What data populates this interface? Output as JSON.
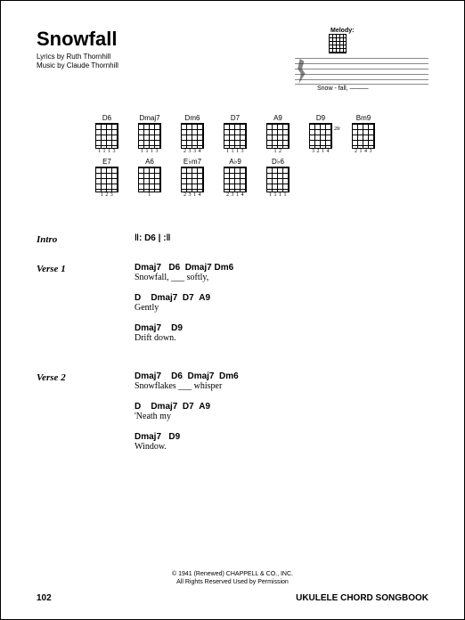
{
  "title": "Snowfall",
  "credits": {
    "lyrics": "Lyrics by Ruth Thornhill",
    "music": "Music by Claude Thornhill"
  },
  "melody": {
    "label": "Melody:",
    "lyric": "Snow - fall, ———"
  },
  "chords": [
    {
      "name": "D6",
      "fingering": "1 1 1 3",
      "fret": ""
    },
    {
      "name": "Dmaj7",
      "fingering": "1 1 1 3",
      "fret": ""
    },
    {
      "name": "Dm6",
      "fingering": "2 3 3 4",
      "fret": ""
    },
    {
      "name": "D7",
      "fingering": "1 1 1 3",
      "fret": ""
    },
    {
      "name": "A9",
      "fingering": " 1  2",
      "fret": ""
    },
    {
      "name": "D9",
      "fingering": "3 2 1 4",
      "fret": "2fr"
    },
    {
      "name": "Bm9",
      "fingering": "2 1 4 3",
      "fret": ""
    },
    {
      "name": "E7",
      "fingering": "1 2  3",
      "fret": ""
    },
    {
      "name": "A6",
      "fingering": "  1  ",
      "fret": ""
    },
    {
      "name": "E♭m7",
      "fingering": "2 3 1 4",
      "fret": ""
    },
    {
      "name": "A♭9",
      "fingering": "2 3 1 4",
      "fret": ""
    },
    {
      "name": "D♭6",
      "fingering": "1 1 1 1",
      "fret": ""
    }
  ],
  "sections": [
    {
      "label": "Intro",
      "type": "intro",
      "bars": "‖: D6        |            :‖"
    },
    {
      "label": "Verse 1",
      "type": "verse",
      "lines": [
        {
          "chords": "Dmaj7   D6  Dmaj7 Dm6",
          "lyric": "Snowfall, ___ softly,"
        },
        {
          "chords": "D    Dmaj7  D7  A9",
          "lyric": "Gently"
        },
        {
          "chords": "Dmaj7    D9",
          "lyric": "Drift down."
        }
      ]
    },
    {
      "label": "Verse 2",
      "type": "verse",
      "lines": [
        {
          "chords": "Dmaj7    D6  Dmaj7  Dm6",
          "lyric": "Snowflakes ___ whisper"
        },
        {
          "chords": "D    Dmaj7  D7  A9",
          "lyric": "'Neath my"
        },
        {
          "chords": "Dmaj7   D9",
          "lyric": "Window."
        }
      ]
    }
  ],
  "copyright": {
    "line1": "© 1941 (Renewed) CHAPPELL & CO., INC.",
    "line2": "All Rights Reserved   Used by Permission"
  },
  "footer": {
    "page": "102",
    "book": "UKULELE CHORD SONGBOOK"
  },
  "colors": {
    "text": "#000000",
    "background": "#ffffff",
    "staff": "#888888"
  }
}
